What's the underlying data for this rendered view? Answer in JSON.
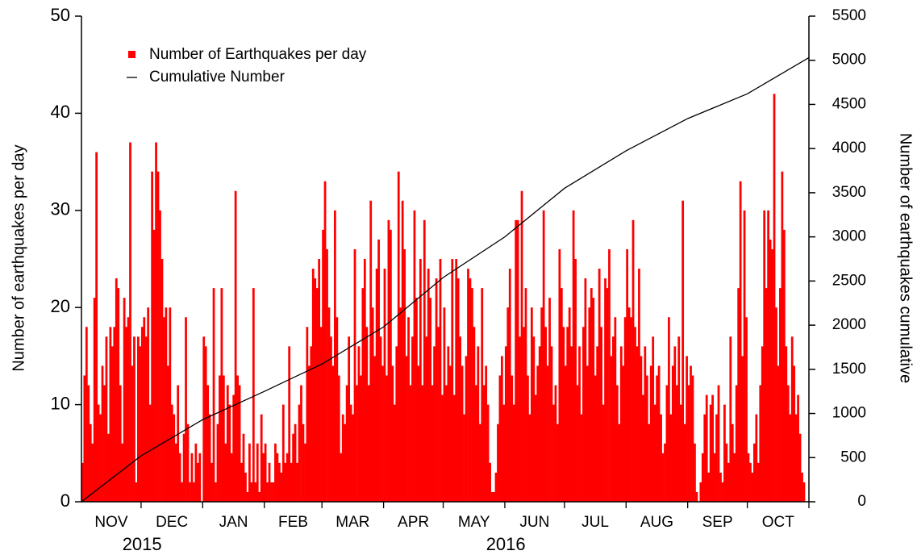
{
  "chart_data": {
    "type": "bar",
    "ylabel": "Number of earthquakes per day",
    "y2label": "Number of earthquakes cumulative",
    "ylim": [
      0,
      50
    ],
    "yticks": [
      0,
      10,
      20,
      30,
      40,
      50
    ],
    "y2lim": [
      0,
      5500
    ],
    "y2ticks": [
      0,
      500,
      1000,
      1500,
      2000,
      2500,
      3000,
      3500,
      4000,
      4500,
      5000,
      5500
    ],
    "legend": "upper left",
    "years": [
      {
        "label": "2015",
        "months": [
          {
            "label": "NOV",
            "values": [
              4,
              13,
              18,
              12,
              8,
              6,
              21,
              36,
              10,
              9,
              14,
              12,
              17,
              7,
              18,
              16,
              18,
              23,
              22,
              12,
              6,
              21,
              18,
              19,
              37,
              14,
              17,
              2,
              17,
              16
            ]
          },
          {
            "label": "DEC",
            "values": [
              18,
              19,
              17,
              20,
              10,
              34,
              28,
              37,
              34,
              30,
              25,
              19,
              20,
              14,
              20,
              10,
              9,
              6,
              12,
              5,
              2,
              7,
              19,
              8,
              2,
              5,
              2,
              6,
              4,
              5,
              0
            ]
          }
        ]
      },
      {
        "label": "2016",
        "months": [
          {
            "label": "JAN",
            "values": [
              17,
              16,
              12,
              9,
              4,
              22,
              2,
              8,
              13,
              22,
              13,
              6,
              12,
              10,
              5,
              11,
              32,
              13,
              12,
              4,
              7,
              3,
              1,
              6,
              2,
              22,
              2,
              6,
              1,
              9,
              5
            ]
          },
          {
            "label": "FEB",
            "values": [
              6,
              2,
              4,
              2,
              2,
              6,
              5,
              4,
              3,
              10,
              4,
              5,
              16,
              4,
              7,
              8,
              4,
              10,
              12,
              8,
              6,
              18,
              14,
              16,
              24,
              23,
              22,
              25,
              18
            ]
          },
          {
            "label": "MAR",
            "values": [
              28,
              33,
              26,
              20,
              17,
              14,
              30,
              19,
              13,
              5,
              9,
              8,
              12,
              17,
              10,
              9,
              26,
              12,
              16,
              13,
              22,
              25,
              18,
              12,
              31,
              20,
              15,
              24,
              27,
              17,
              14
            ]
          },
          {
            "label": "APR",
            "values": [
              24,
              13,
              29,
              28,
              14,
              10,
              16,
              34,
              20,
              31,
              26,
              15,
              19,
              12,
              17,
              30,
              21,
              14,
              25,
              12,
              29,
              17,
              24,
              21,
              12,
              16,
              23,
              18,
              25,
              11
            ]
          },
          {
            "label": "MAY",
            "values": [
              20,
              12,
              16,
              14,
              25,
              11,
              25,
              23,
              17,
              14,
              9,
              15,
              24,
              23,
              22,
              18,
              12,
              16,
              8,
              22,
              12,
              14,
              10,
              4,
              1,
              1,
              3,
              8,
              13,
              15,
              10
            ]
          },
          {
            "label": "JUN",
            "values": [
              16,
              20,
              24,
              13,
              10,
              29,
              29,
              17,
              32,
              18,
              22,
              13,
              9,
              20,
              17,
              11,
              14,
              16,
              20,
              30,
              18,
              14,
              21,
              16,
              10,
              12,
              8,
              26,
              22,
              18
            ]
          },
          {
            "label": "JUL",
            "values": [
              14,
              18,
              20,
              16,
              30,
              25,
              12,
              16,
              9,
              18,
              23,
              14,
              20,
              22,
              21,
              13,
              16,
              24,
              18,
              10,
              23,
              22,
              26,
              15,
              17,
              19,
              12,
              8,
              16,
              14,
              19
            ]
          },
          {
            "label": "AUG",
            "values": [
              26,
              20,
              19,
              29,
              18,
              16,
              24,
              15,
              11,
              16,
              13,
              8,
              14,
              17,
              10,
              13,
              14,
              9,
              5,
              6,
              12,
              19,
              9,
              14,
              16,
              12,
              17,
              10,
              31,
              8,
              15
            ]
          },
          {
            "label": "SEP",
            "values": [
              12,
              14,
              13,
              6,
              1,
              0,
              2,
              5,
              9,
              11,
              3,
              10,
              11,
              5,
              9,
              12,
              3,
              2,
              10,
              6,
              4,
              17,
              8,
              5,
              12,
              22,
              33,
              15,
              30,
              19
            ]
          },
          {
            "label": "OCT",
            "values": [
              5,
              4,
              3,
              6,
              9,
              4,
              12,
              16,
              30,
              22,
              30,
              27,
              26,
              42,
              20,
              14,
              22,
              34,
              28,
              16,
              12,
              9,
              17,
              14,
              9,
              11,
              7,
              3,
              2,
              0,
              0
            ]
          }
        ]
      }
    ],
    "series": [
      {
        "name": "Number of Earthquakes per day",
        "color": "#ff0000"
      },
      {
        "name": "Cumulative Number",
        "color": "#000000",
        "axis": "y2",
        "type": "line",
        "values": [
          0,
          520,
          930,
          1250,
          1560,
          1980,
          2540,
          3000,
          3550,
          3975,
          4340,
          4620,
          5030
        ]
      }
    ]
  }
}
